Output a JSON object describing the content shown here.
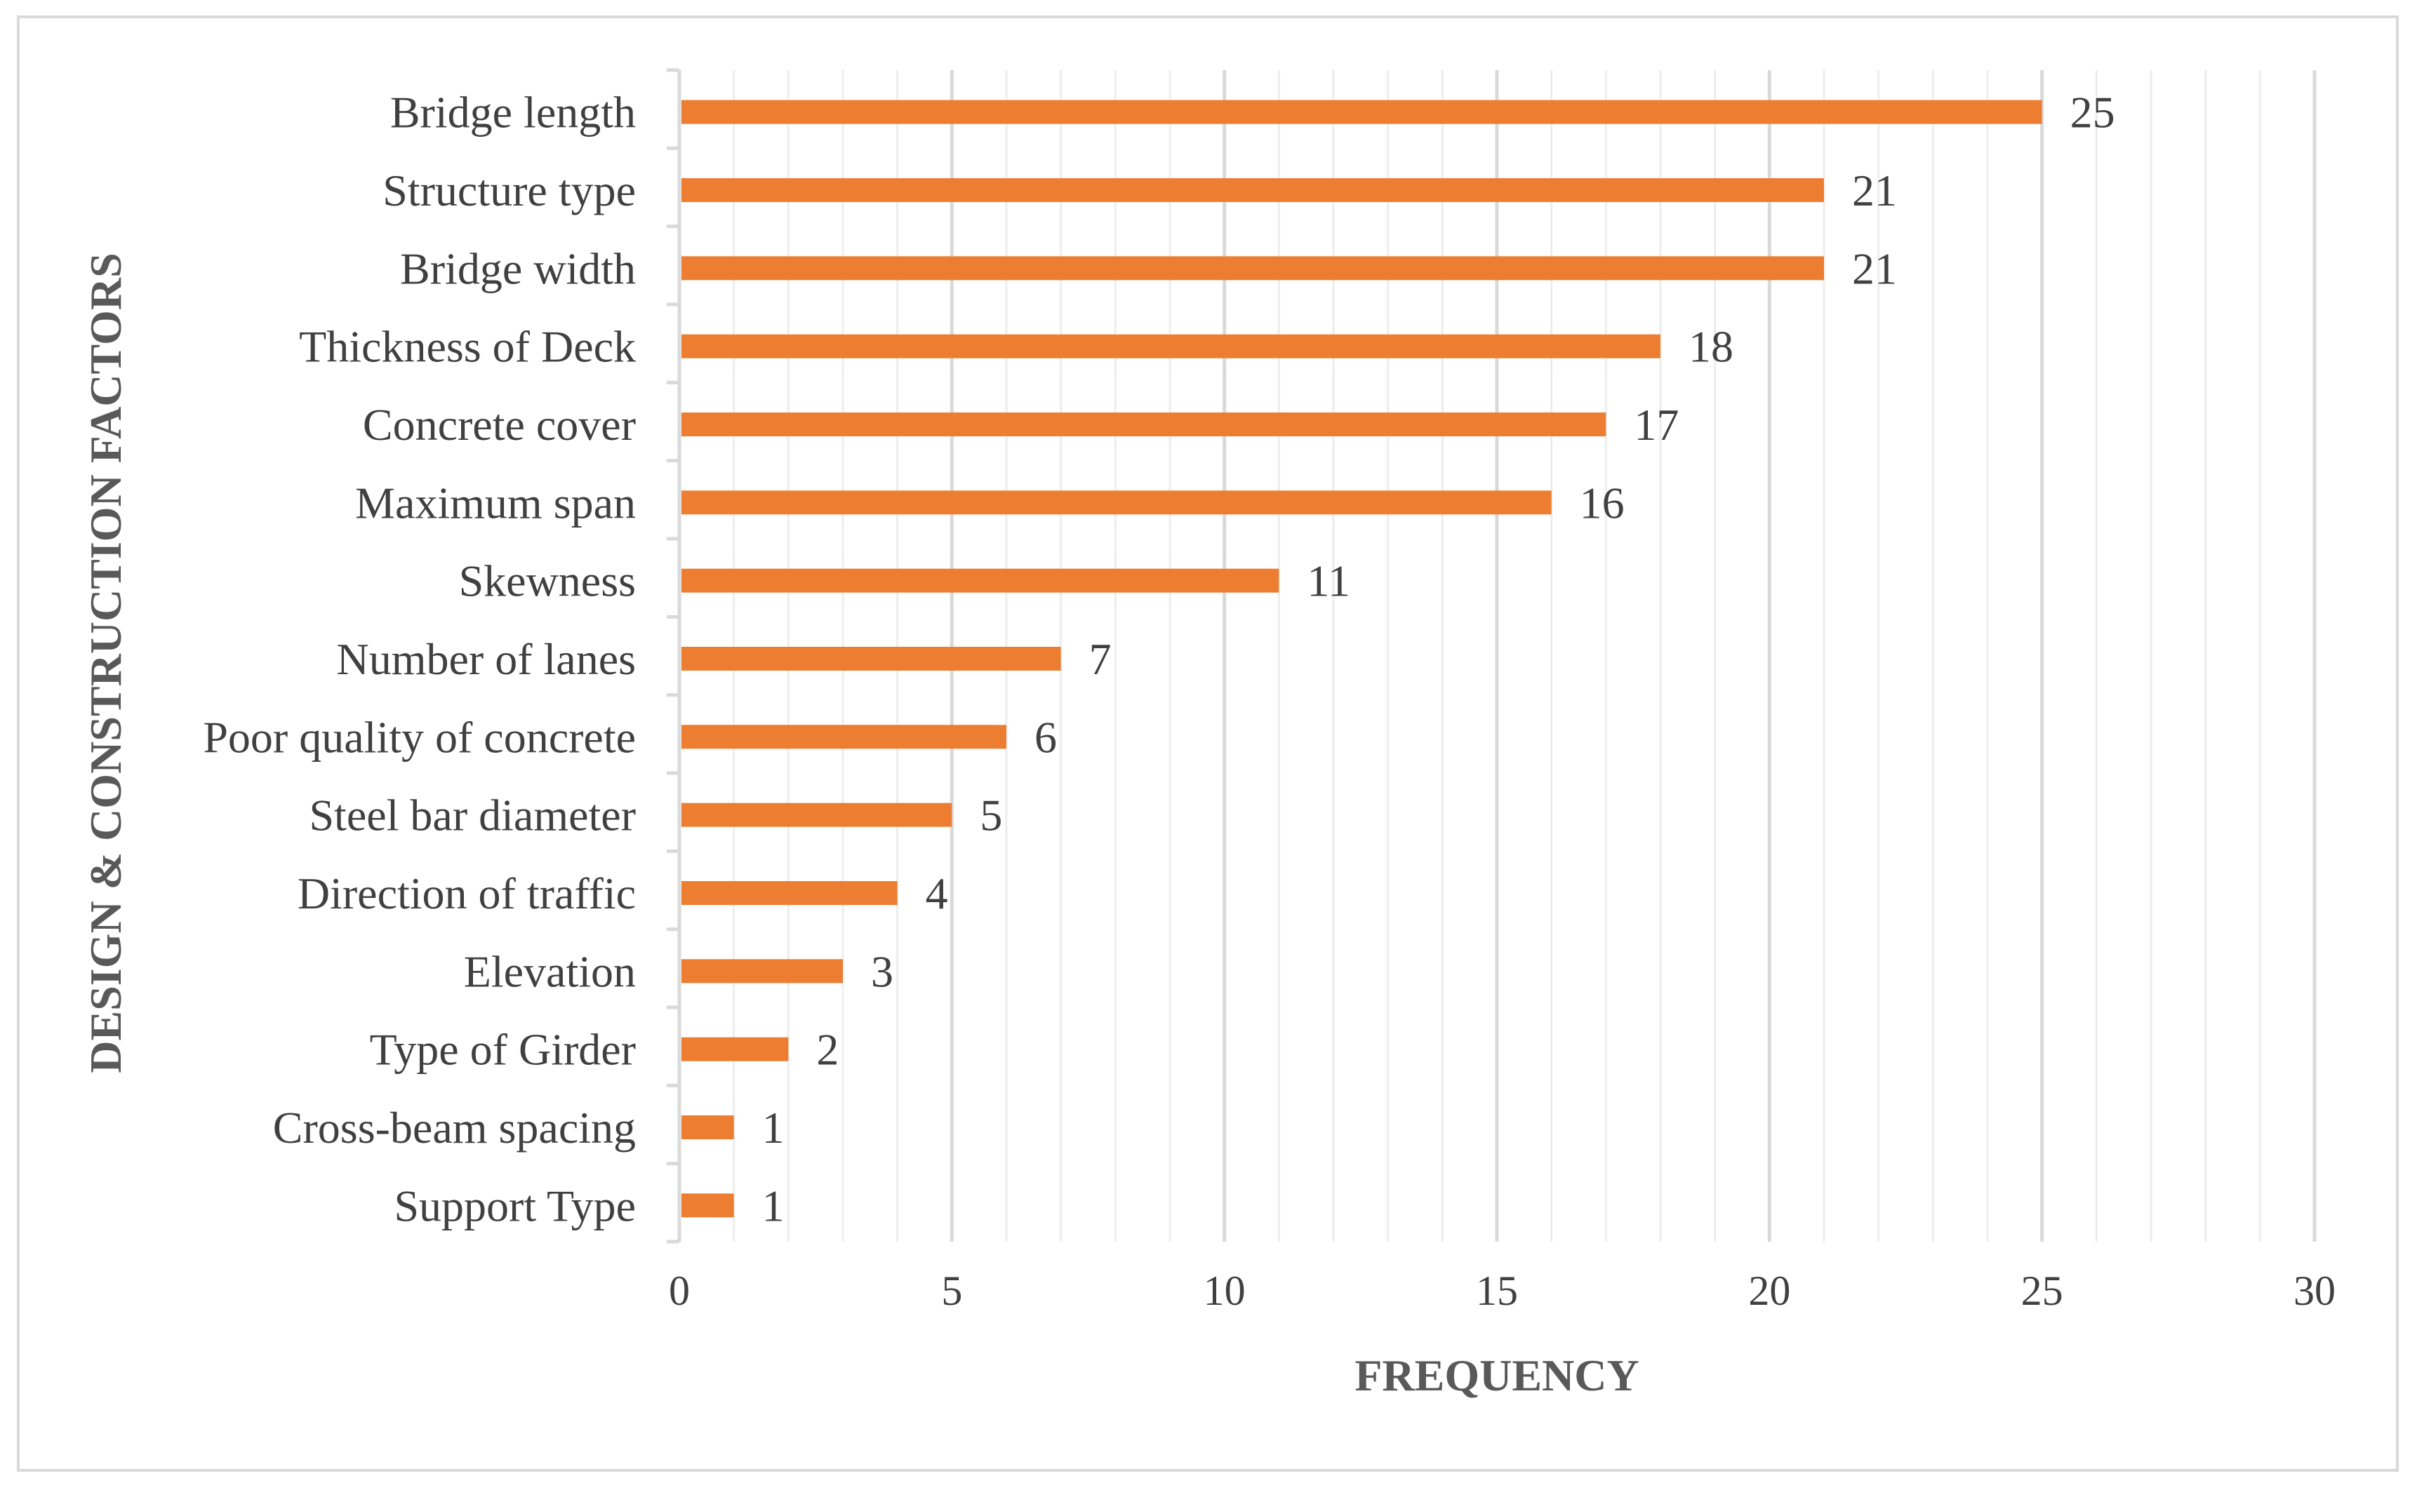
{
  "chart_data": {
    "type": "bar",
    "orientation": "horizontal",
    "title": "",
    "xlabel": "FREQUENCY",
    "ylabel": "DESIGN & CONSTRUCTION FACTORS",
    "xlim": [
      0,
      30
    ],
    "x_ticks": [
      0,
      5,
      10,
      15,
      20,
      25,
      30
    ],
    "grid": "vertical major and minor",
    "bar_color": "#ED7D31",
    "grid_major_color": "#D9D9D9",
    "grid_minor_color": "#EDEDED",
    "categories": [
      "Bridge length",
      "Structure type",
      "Bridge width",
      "Thickness of Deck",
      "Concrete cover",
      "Maximum span",
      "Skewness",
      "Number of lanes",
      "Poor quality of concrete",
      "Steel bar diameter",
      "Direction of traffic",
      "Elevation",
      "Type of Girder",
      "Cross-beam spacing",
      "Support Type"
    ],
    "values": [
      25,
      21,
      21,
      18,
      17,
      16,
      11,
      7,
      6,
      5,
      4,
      3,
      2,
      1,
      1
    ],
    "data_labels": [
      "25",
      "21",
      "21",
      "18",
      "17",
      "16",
      "11",
      "7",
      "6",
      "5",
      "4",
      "3",
      "2",
      "1",
      "1"
    ],
    "legend": "none"
  }
}
